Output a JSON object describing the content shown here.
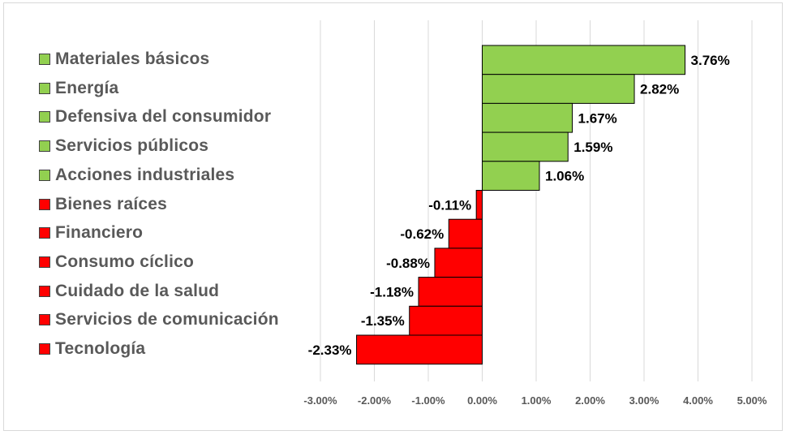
{
  "chart_data": {
    "type": "bar",
    "orientation": "horizontal",
    "title": "",
    "xlabel": "",
    "ylabel": "",
    "xlim": [
      -3.0,
      5.0
    ],
    "x_ticks": [
      "-3.00%",
      "-2.00%",
      "-1.00%",
      "0.00%",
      "1.00%",
      "2.00%",
      "3.00%",
      "4.00%",
      "5.00%"
    ],
    "grid": "vertical",
    "legend_position": "left",
    "categories": [
      "Materiales básicos",
      "Energía",
      "Defensiva del consumidor",
      "Servicios públicos",
      "Acciones industriales",
      "Bienes raíces",
      "Financiero",
      "Consumo cíclico",
      "Cuidado de la salud",
      "Servicios de comunicación",
      "Tecnología"
    ],
    "values": [
      3.76,
      2.82,
      1.67,
      1.59,
      1.06,
      -0.11,
      -0.62,
      -0.88,
      -1.18,
      -1.35,
      -2.33
    ],
    "data_labels": [
      "3.76%",
      "2.82%",
      "1.67%",
      "1.59%",
      "1.06%",
      "-0.11%",
      "-0.62%",
      "-0.88%",
      "-1.18%",
      "-1.35%",
      "-2.33%"
    ],
    "colors": {
      "positive": "#92d050",
      "negative": "#ff0000",
      "bar_border": "#000000",
      "gridline": "#d9d9d9",
      "tick_text": "#595959",
      "label_text": "#000000"
    }
  }
}
